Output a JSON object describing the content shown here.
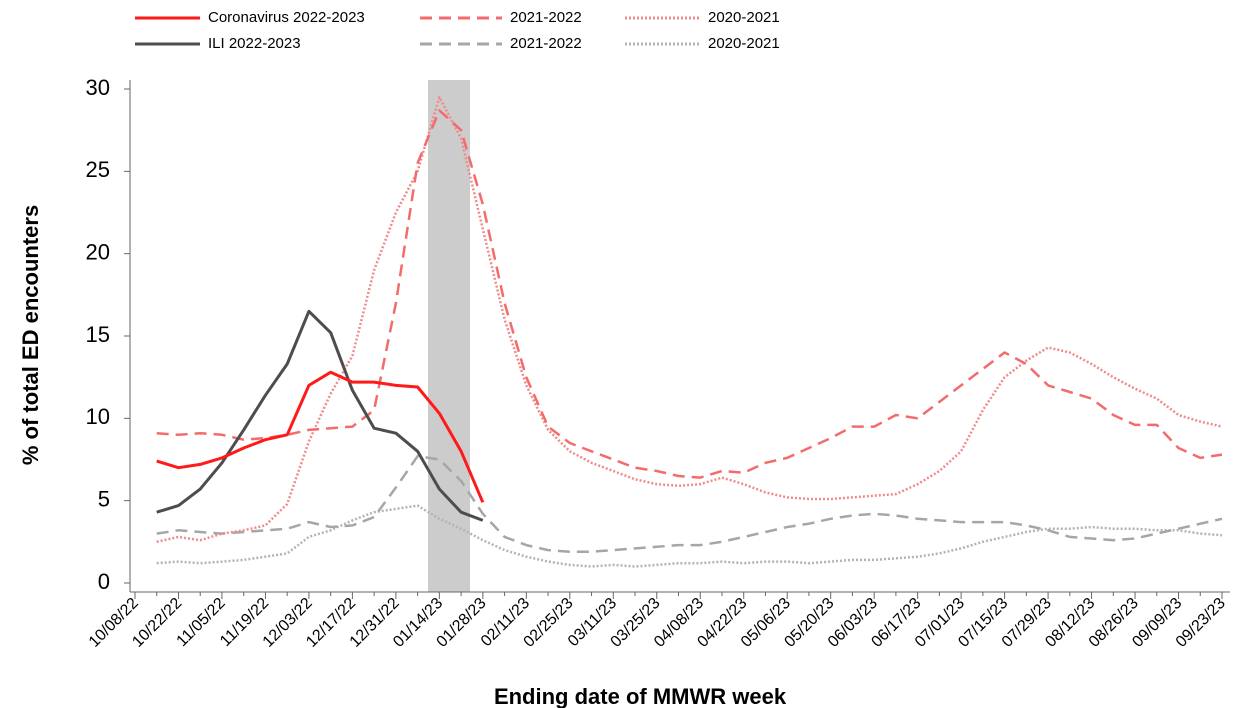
{
  "chart_data": {
    "type": "line",
    "x_label": "Ending date of MMWR week",
    "y_label": "% of total ED encounters",
    "categories": [
      "10/08/22",
      null,
      "10/22/22",
      null,
      "11/05/22",
      null,
      "11/19/22",
      null,
      "12/03/22",
      null,
      "12/17/22",
      null,
      "12/31/22",
      null,
      "01/14/23",
      null,
      "01/28/23",
      null,
      "02/11/23",
      null,
      "02/25/23",
      null,
      "03/11/23",
      null,
      "03/25/23",
      null,
      "04/08/23",
      null,
      "04/22/23",
      null,
      "05/06/23",
      null,
      "05/20/23",
      null,
      "06/03/23",
      null,
      "06/17/23",
      null,
      "07/01/23",
      null,
      "07/15/23",
      null,
      "07/29/23",
      null,
      "08/12/23",
      null,
      "08/26/23",
      null,
      "09/09/23",
      null,
      "09/23/23"
    ],
    "ylim": [
      0,
      30
    ],
    "yticks": [
      0,
      5,
      10,
      15,
      20,
      25,
      30
    ],
    "series": [
      {
        "name": "Coronavirus 2022-2023",
        "color": "#ff1a1a",
        "dash": "solid",
        "values": [
          null,
          7.4,
          7.0,
          7.2,
          7.6,
          8.2,
          8.7,
          9.0,
          12.0,
          12.8,
          12.2,
          12.2,
          12.0,
          11.9,
          10.3,
          8.0,
          4.9,
          null,
          null,
          null,
          null,
          null,
          null,
          null,
          null,
          null,
          null,
          null,
          null,
          null,
          null,
          null,
          null,
          null,
          null,
          null,
          null,
          null,
          null,
          null,
          null,
          null,
          null,
          null,
          null,
          null,
          null,
          null,
          null,
          null,
          null
        ]
      },
      {
        "name": "ILI 2022-2023",
        "color": "#4d4d4d",
        "dash": "solid",
        "values": [
          null,
          4.3,
          4.7,
          5.7,
          7.3,
          9.3,
          11.4,
          13.3,
          16.5,
          15.2,
          11.7,
          9.4,
          9.1,
          8.0,
          5.7,
          4.3,
          3.8,
          null,
          null,
          null,
          null,
          null,
          null,
          null,
          null,
          null,
          null,
          null,
          null,
          null,
          null,
          null,
          null,
          null,
          null,
          null,
          null,
          null,
          null,
          null,
          null,
          null,
          null,
          null,
          null,
          null,
          null,
          null,
          null,
          null,
          null
        ]
      },
      {
        "name": "2021-2022",
        "color": "#f36b6b",
        "dash": "dashed",
        "values": [
          null,
          9.1,
          9.0,
          9.1,
          9.0,
          8.7,
          8.8,
          9.0,
          9.3,
          9.4,
          9.5,
          10.5,
          17.0,
          25.5,
          28.7,
          27.5,
          23.0,
          17.0,
          12.5,
          9.5,
          8.5,
          8.0,
          7.5,
          7.0,
          6.8,
          6.5,
          6.4,
          6.8,
          6.7,
          7.3,
          7.6,
          8.2,
          8.8,
          9.5,
          9.5,
          10.2,
          10.0,
          11.0,
          12.0,
          13.0,
          14.0,
          13.3,
          12.0,
          11.6,
          11.2,
          10.2,
          9.6,
          9.6,
          8.2,
          7.6,
          7.8
        ]
      },
      {
        "name": "2021-2022",
        "color": "#a6a6a6",
        "dash": "dashed",
        "values": [
          null,
          3.0,
          3.2,
          3.1,
          3.0,
          3.1,
          3.2,
          3.3,
          3.7,
          3.4,
          3.5,
          4.0,
          5.8,
          7.7,
          7.5,
          6.2,
          4.2,
          2.8,
          2.3,
          2.0,
          1.9,
          1.9,
          2.0,
          2.1,
          2.2,
          2.3,
          2.3,
          2.5,
          2.8,
          3.1,
          3.4,
          3.6,
          3.9,
          4.1,
          4.2,
          4.1,
          3.9,
          3.8,
          3.7,
          3.7,
          3.7,
          3.5,
          3.2,
          2.8,
          2.7,
          2.6,
          2.7,
          3.0,
          3.3,
          3.6,
          3.9
        ]
      },
      {
        "name": "2020-2021",
        "color": "#f08a8a",
        "dash": "dotted",
        "values": [
          null,
          2.5,
          2.8,
          2.6,
          3.0,
          3.2,
          3.5,
          4.8,
          8.6,
          11.5,
          13.8,
          19.0,
          22.5,
          25.0,
          29.5,
          27.0,
          21.5,
          16.0,
          12.0,
          9.3,
          8.0,
          7.3,
          6.8,
          6.3,
          6.0,
          5.9,
          6.0,
          6.4,
          6.0,
          5.5,
          5.2,
          5.1,
          5.1,
          5.2,
          5.3,
          5.4,
          6.0,
          6.8,
          8.0,
          10.5,
          12.5,
          13.5,
          14.3,
          14.0,
          13.3,
          12.5,
          11.8,
          11.2,
          10.2,
          9.8,
          9.5
        ]
      },
      {
        "name": "2020-2021",
        "color": "#b3b3b3",
        "dash": "dotted",
        "values": [
          null,
          1.2,
          1.3,
          1.2,
          1.3,
          1.4,
          1.6,
          1.8,
          2.8,
          3.2,
          3.8,
          4.3,
          4.5,
          4.7,
          3.9,
          3.3,
          2.6,
          2.0,
          1.6,
          1.3,
          1.1,
          1.0,
          1.1,
          1.0,
          1.1,
          1.2,
          1.2,
          1.3,
          1.2,
          1.3,
          1.3,
          1.2,
          1.3,
          1.4,
          1.4,
          1.5,
          1.6,
          1.8,
          2.1,
          2.5,
          2.8,
          3.1,
          3.3,
          3.3,
          3.4,
          3.3,
          3.3,
          3.2,
          3.2,
          3.0,
          2.9
        ]
      }
    ]
  }
}
